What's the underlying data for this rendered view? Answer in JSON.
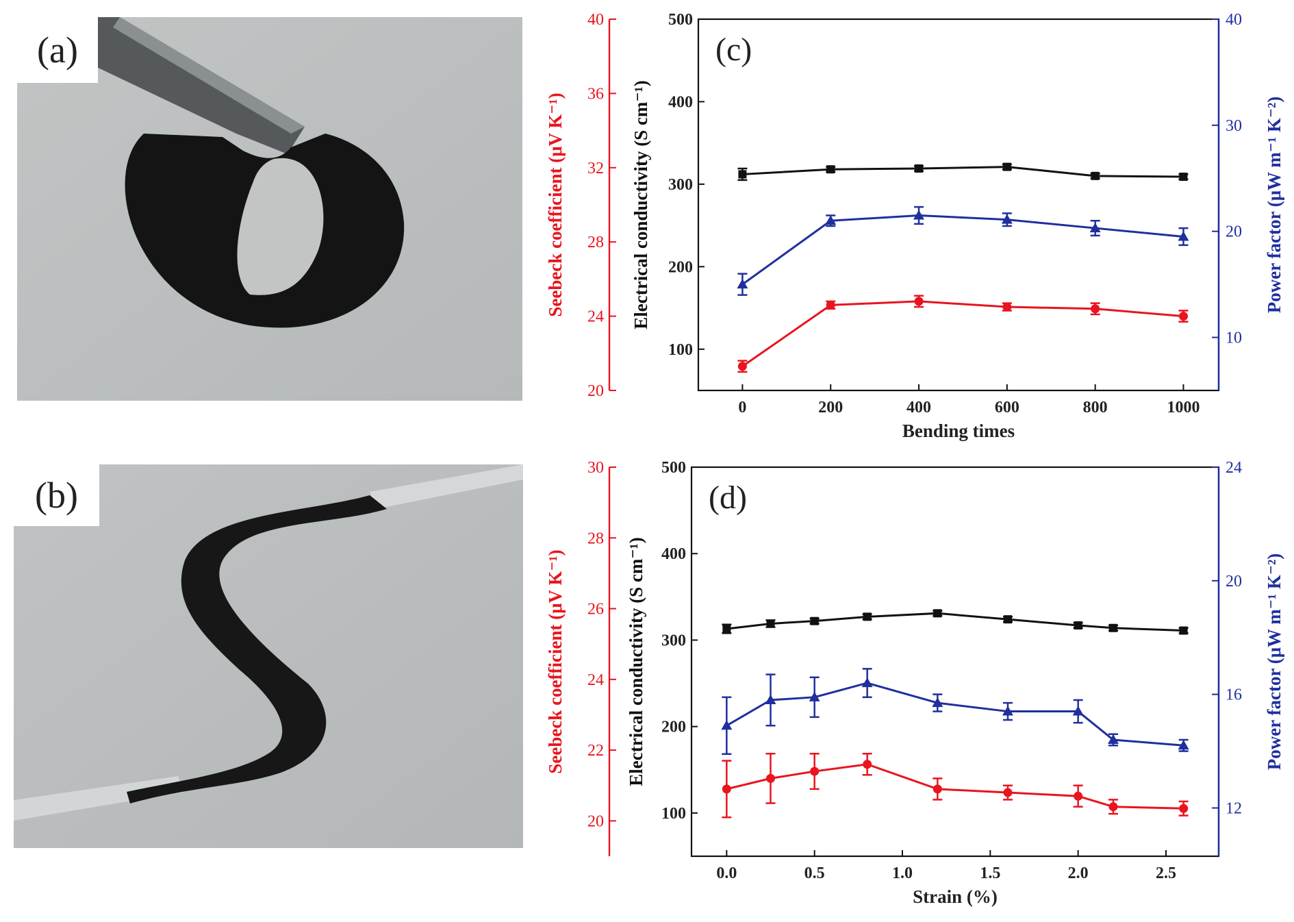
{
  "panels": {
    "a": "(a)",
    "b": "(b)"
  },
  "colors": {
    "seebeck": "#e8141e",
    "conductivity": "#111111",
    "power": "#1f2f9e"
  },
  "chart_data": [
    {
      "type": "line",
      "panel_label": "(c)",
      "xlabel": "Bending times",
      "x": [
        0,
        200,
        400,
        600,
        800,
        1000
      ],
      "x_ticks": [
        "0",
        "200",
        "400",
        "600",
        "800",
        "1000"
      ],
      "xlim": [
        -100,
        1080
      ],
      "axes": {
        "seebeck": {
          "label": "Seebeck coefficient (μV K⁻¹)",
          "lim": [
            20,
            40
          ],
          "ticks": [
            "20",
            "24",
            "28",
            "32",
            "36",
            "40"
          ]
        },
        "conductivity": {
          "label": "Electrical conductivity (S cm⁻¹)",
          "lim": [
            50,
            500
          ],
          "ticks": [
            "100",
            "200",
            "300",
            "400",
            "500"
          ]
        },
        "power": {
          "label": "Power factor (μW m⁻¹ K⁻²)",
          "lim": [
            5,
            40
          ],
          "ticks": [
            "10",
            "20",
            "30",
            "40"
          ]
        }
      },
      "series": [
        {
          "name": "Electrical conductivity",
          "axis": "conductivity",
          "marker": "square",
          "values": [
            312,
            318,
            319,
            321,
            310,
            309
          ],
          "errors": [
            7,
            3,
            3,
            3,
            3,
            3
          ]
        },
        {
          "name": "Power factor",
          "axis": "power",
          "marker": "triangle",
          "values": [
            15.0,
            21.0,
            21.5,
            21.1,
            20.3,
            19.5
          ],
          "errors": [
            1.0,
            0.5,
            0.8,
            0.6,
            0.7,
            0.8
          ]
        },
        {
          "name": "Seebeck coefficient",
          "axis": "seebeck",
          "marker": "circle",
          "values": [
            21.3,
            24.6,
            24.8,
            24.5,
            24.4,
            24.0
          ],
          "errors": [
            0.3,
            0.2,
            0.3,
            0.2,
            0.3,
            0.3
          ]
        }
      ]
    },
    {
      "type": "line",
      "panel_label": "(d)",
      "xlabel": "Strain (%)",
      "x": [
        0.0,
        0.25,
        0.5,
        0.8,
        1.2,
        1.6,
        2.0,
        2.2,
        2.6
      ],
      "x_ticks": [
        "0.0",
        "0.5",
        "1.0",
        "1.5",
        "2.0",
        "2.5"
      ],
      "x_tick_values": [
        0.0,
        0.5,
        1.0,
        1.5,
        2.0,
        2.5
      ],
      "xlim": [
        -0.2,
        2.8
      ],
      "axes": {
        "seebeck": {
          "label": "Seebeck coefficient (μV K⁻¹)",
          "lim": [
            19,
            30
          ],
          "ticks": [
            "20",
            "22",
            "24",
            "26",
            "28",
            "30"
          ]
        },
        "conductivity": {
          "label": "Electrical conductivity (S cm⁻¹)",
          "lim": [
            50,
            500
          ],
          "ticks": [
            "100",
            "200",
            "300",
            "400",
            "500"
          ]
        },
        "power": {
          "label": "Power factor (μW m⁻¹ K⁻²)",
          "lim": [
            10.3,
            24
          ],
          "ticks": [
            "12",
            "16",
            "20",
            "24"
          ]
        }
      },
      "series": [
        {
          "name": "Electrical conductivity",
          "axis": "conductivity",
          "marker": "square",
          "values": [
            313,
            319,
            322,
            327,
            331,
            324,
            317,
            314,
            311
          ],
          "errors": [
            5,
            4,
            3,
            3,
            3,
            3,
            3,
            3,
            3
          ]
        },
        {
          "name": "Power factor",
          "axis": "power",
          "marker": "triangle",
          "values": [
            14.9,
            15.8,
            15.9,
            16.4,
            15.7,
            15.4,
            15.4,
            14.4,
            14.2
          ],
          "errors": [
            1.0,
            0.9,
            0.7,
            0.5,
            0.3,
            0.3,
            0.4,
            0.2,
            0.2
          ]
        },
        {
          "name": "Seebeck coefficient",
          "axis": "seebeck",
          "marker": "circle",
          "values": [
            20.9,
            21.2,
            21.4,
            21.6,
            20.9,
            20.8,
            20.7,
            20.4,
            20.35
          ],
          "errors": [
            0.8,
            0.7,
            0.5,
            0.3,
            0.3,
            0.2,
            0.3,
            0.2,
            0.2
          ]
        }
      ]
    }
  ]
}
